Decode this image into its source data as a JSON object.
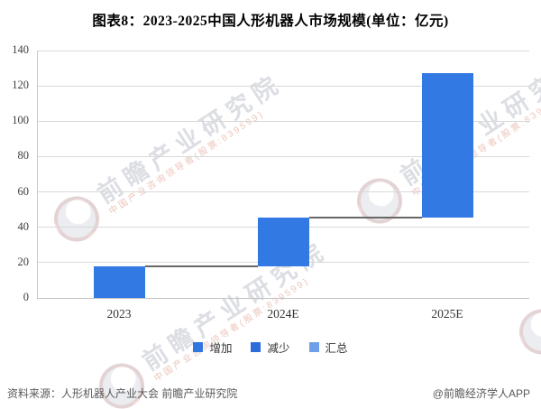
{
  "title": "图表8：2023-2025中国人形机器人市场规模(单位：亿元)",
  "footer": {
    "source": "资料来源：人形机器人产业大会 前瞻产业研究院",
    "credit": "@前瞻经济学人APP"
  },
  "watermark": {
    "text": "前瞻产业研究院",
    "subtext": "中国产业咨询领导者(股票:839599)"
  },
  "legend": [
    {
      "label": "增加",
      "color": "#3176E1"
    },
    {
      "label": "减少",
      "color": "#2D6CDB"
    },
    {
      "label": "汇总",
      "color": "#6F9FE9"
    }
  ],
  "chart_data": {
    "type": "bar",
    "subtype": "waterfall",
    "title": "图表8：2023-2025中国人形机器人市场规模(单位：亿元)",
    "unit": "亿元",
    "categories": [
      "2023",
      "2024E",
      "2025E"
    ],
    "series": [
      {
        "name": "增加",
        "increase_values": [
          17.7,
          27.6,
          82.1
        ],
        "cumulative_totals": [
          17.7,
          45.3,
          127.4
        ],
        "bases": [
          0,
          17.7,
          45.3
        ]
      }
    ],
    "ylim": [
      0,
      140
    ],
    "yticks": [
      0,
      20,
      40,
      60,
      80,
      100,
      120,
      140
    ],
    "grid": true,
    "legend_position": "bottom",
    "legend_labels": [
      "增加",
      "减少",
      "汇总"
    ],
    "bar_color": "#3379E3",
    "connector_color": "#686868",
    "gridline_color": "#d9d9d9"
  }
}
